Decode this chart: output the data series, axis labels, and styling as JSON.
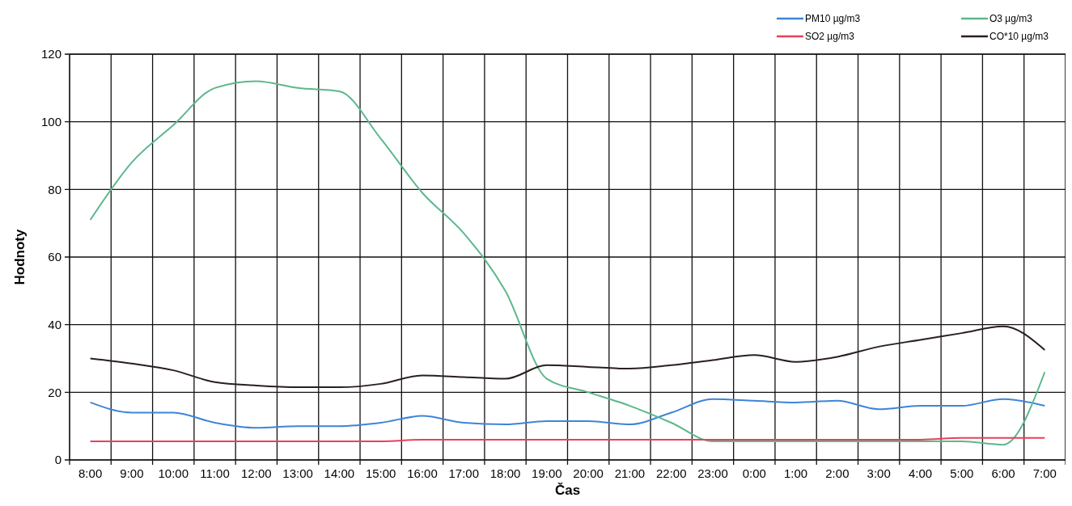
{
  "chart_data": {
    "type": "line",
    "xlabel": "Čas",
    "ylabel": "Hodnoty",
    "categories": [
      "8:00",
      "9:00",
      "10:00",
      "11:00",
      "12:00",
      "13:00",
      "14:00",
      "15:00",
      "16:00",
      "17:00",
      "18:00",
      "19:00",
      "20:00",
      "21:00",
      "22:00",
      "23:00",
      "0:00",
      "1:00",
      "2:00",
      "3:00",
      "4:00",
      "5:00",
      "6:00",
      "7:00"
    ],
    "series": [
      {
        "name": "PM10 µg/m3",
        "color": "#3d85d8",
        "values": [
          17,
          14,
          14,
          11,
          9.5,
          10,
          10,
          11,
          13,
          11,
          10.5,
          11.5,
          11.5,
          10.5,
          14,
          18,
          17.5,
          17,
          17.5,
          15,
          16,
          16,
          18,
          16
        ]
      },
      {
        "name": "O3 µg/m3",
        "color": "#5cb88c",
        "values": [
          71,
          88,
          99,
          110,
          112,
          110,
          109,
          95,
          79,
          67,
          50,
          24,
          20,
          16,
          11,
          5.5,
          5.5,
          5.5,
          5.5,
          5.5,
          5.5,
          5.5,
          4.5,
          26
        ]
      },
      {
        "name": "SO2 µg/m3",
        "color": "#e8405a",
        "values": [
          5.5,
          5.5,
          5.5,
          5.5,
          5.5,
          5.5,
          5.5,
          5.5,
          6,
          6,
          6,
          6,
          6,
          6,
          6,
          6,
          6,
          6,
          6,
          6,
          6,
          6.5,
          6.5,
          6.5
        ]
      },
      {
        "name": "CO*10 µg/m3",
        "color": "#2a1f1f",
        "values": [
          30,
          28.5,
          26.5,
          23,
          22,
          21.5,
          21.5,
          22.5,
          25,
          24.5,
          24,
          28,
          27.5,
          27,
          28,
          29.5,
          31,
          29,
          30.5,
          33.5,
          35.5,
          37.5,
          39.5,
          32.5
        ]
      }
    ],
    "ylim": [
      0,
      120
    ],
    "yticks": [
      0,
      20,
      40,
      60,
      80,
      100,
      120
    ],
    "grid": true,
    "legend": "top right",
    "marker": "none",
    "line_style": "solid"
  }
}
